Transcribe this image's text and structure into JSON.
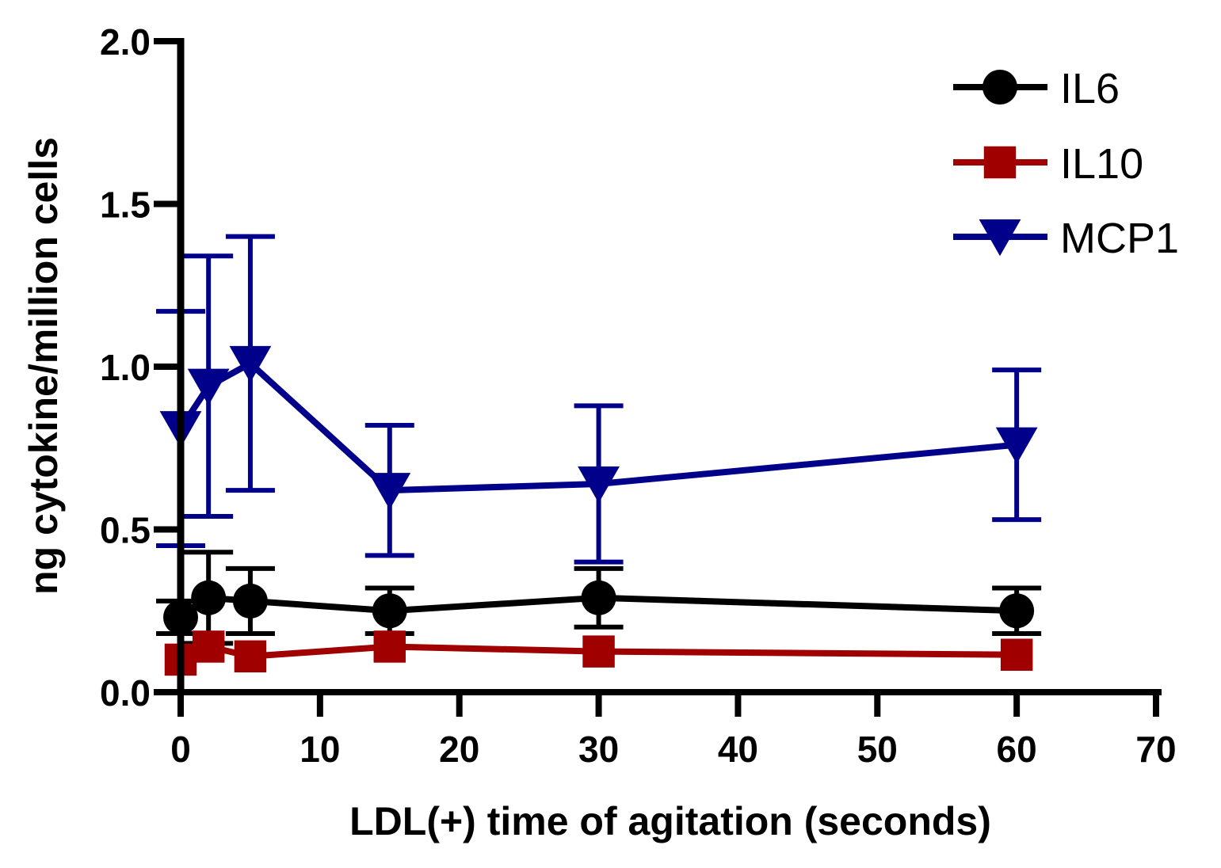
{
  "chart_data": {
    "type": "line",
    "title": "",
    "xlabel": "LDL(+) time of agitation (seconds)",
    "ylabel": "ng cytokine/million cells",
    "xlim": [
      0,
      70
    ],
    "ylim": [
      0,
      2.0
    ],
    "x_ticks": [
      0,
      10,
      20,
      30,
      40,
      50,
      60,
      70
    ],
    "y_ticks": [
      0.0,
      0.5,
      1.0,
      1.5,
      2.0
    ],
    "x_tick_labels": [
      "0",
      "10",
      "20",
      "30",
      "40",
      "50",
      "60",
      "70"
    ],
    "y_tick_labels": [
      "0.0",
      "0.5",
      "1.0",
      "1.5",
      "2.0"
    ],
    "grid": false,
    "legend_position": "top-right",
    "x": [
      0,
      2,
      5,
      15,
      30,
      60
    ],
    "series": [
      {
        "name": "IL6",
        "marker": "circle",
        "color": "#000000",
        "values": [
          0.23,
          0.29,
          0.28,
          0.25,
          0.29,
          0.25
        ],
        "error": [
          0.05,
          0.14,
          0.1,
          0.07,
          0.09,
          0.07
        ]
      },
      {
        "name": "IL10",
        "marker": "square",
        "color": "#a00000",
        "values": [
          0.1,
          0.14,
          0.11,
          0.14,
          0.125,
          0.115
        ],
        "error": [
          0.0,
          0.0,
          0.0,
          0.0,
          0.0,
          0.0
        ]
      },
      {
        "name": "MCP1",
        "marker": "triangle-down",
        "color": "#00008b",
        "values": [
          0.81,
          0.94,
          1.01,
          0.62,
          0.64,
          0.76
        ],
        "error": [
          0.36,
          0.4,
          0.39,
          0.2,
          0.24,
          0.23
        ]
      }
    ]
  }
}
